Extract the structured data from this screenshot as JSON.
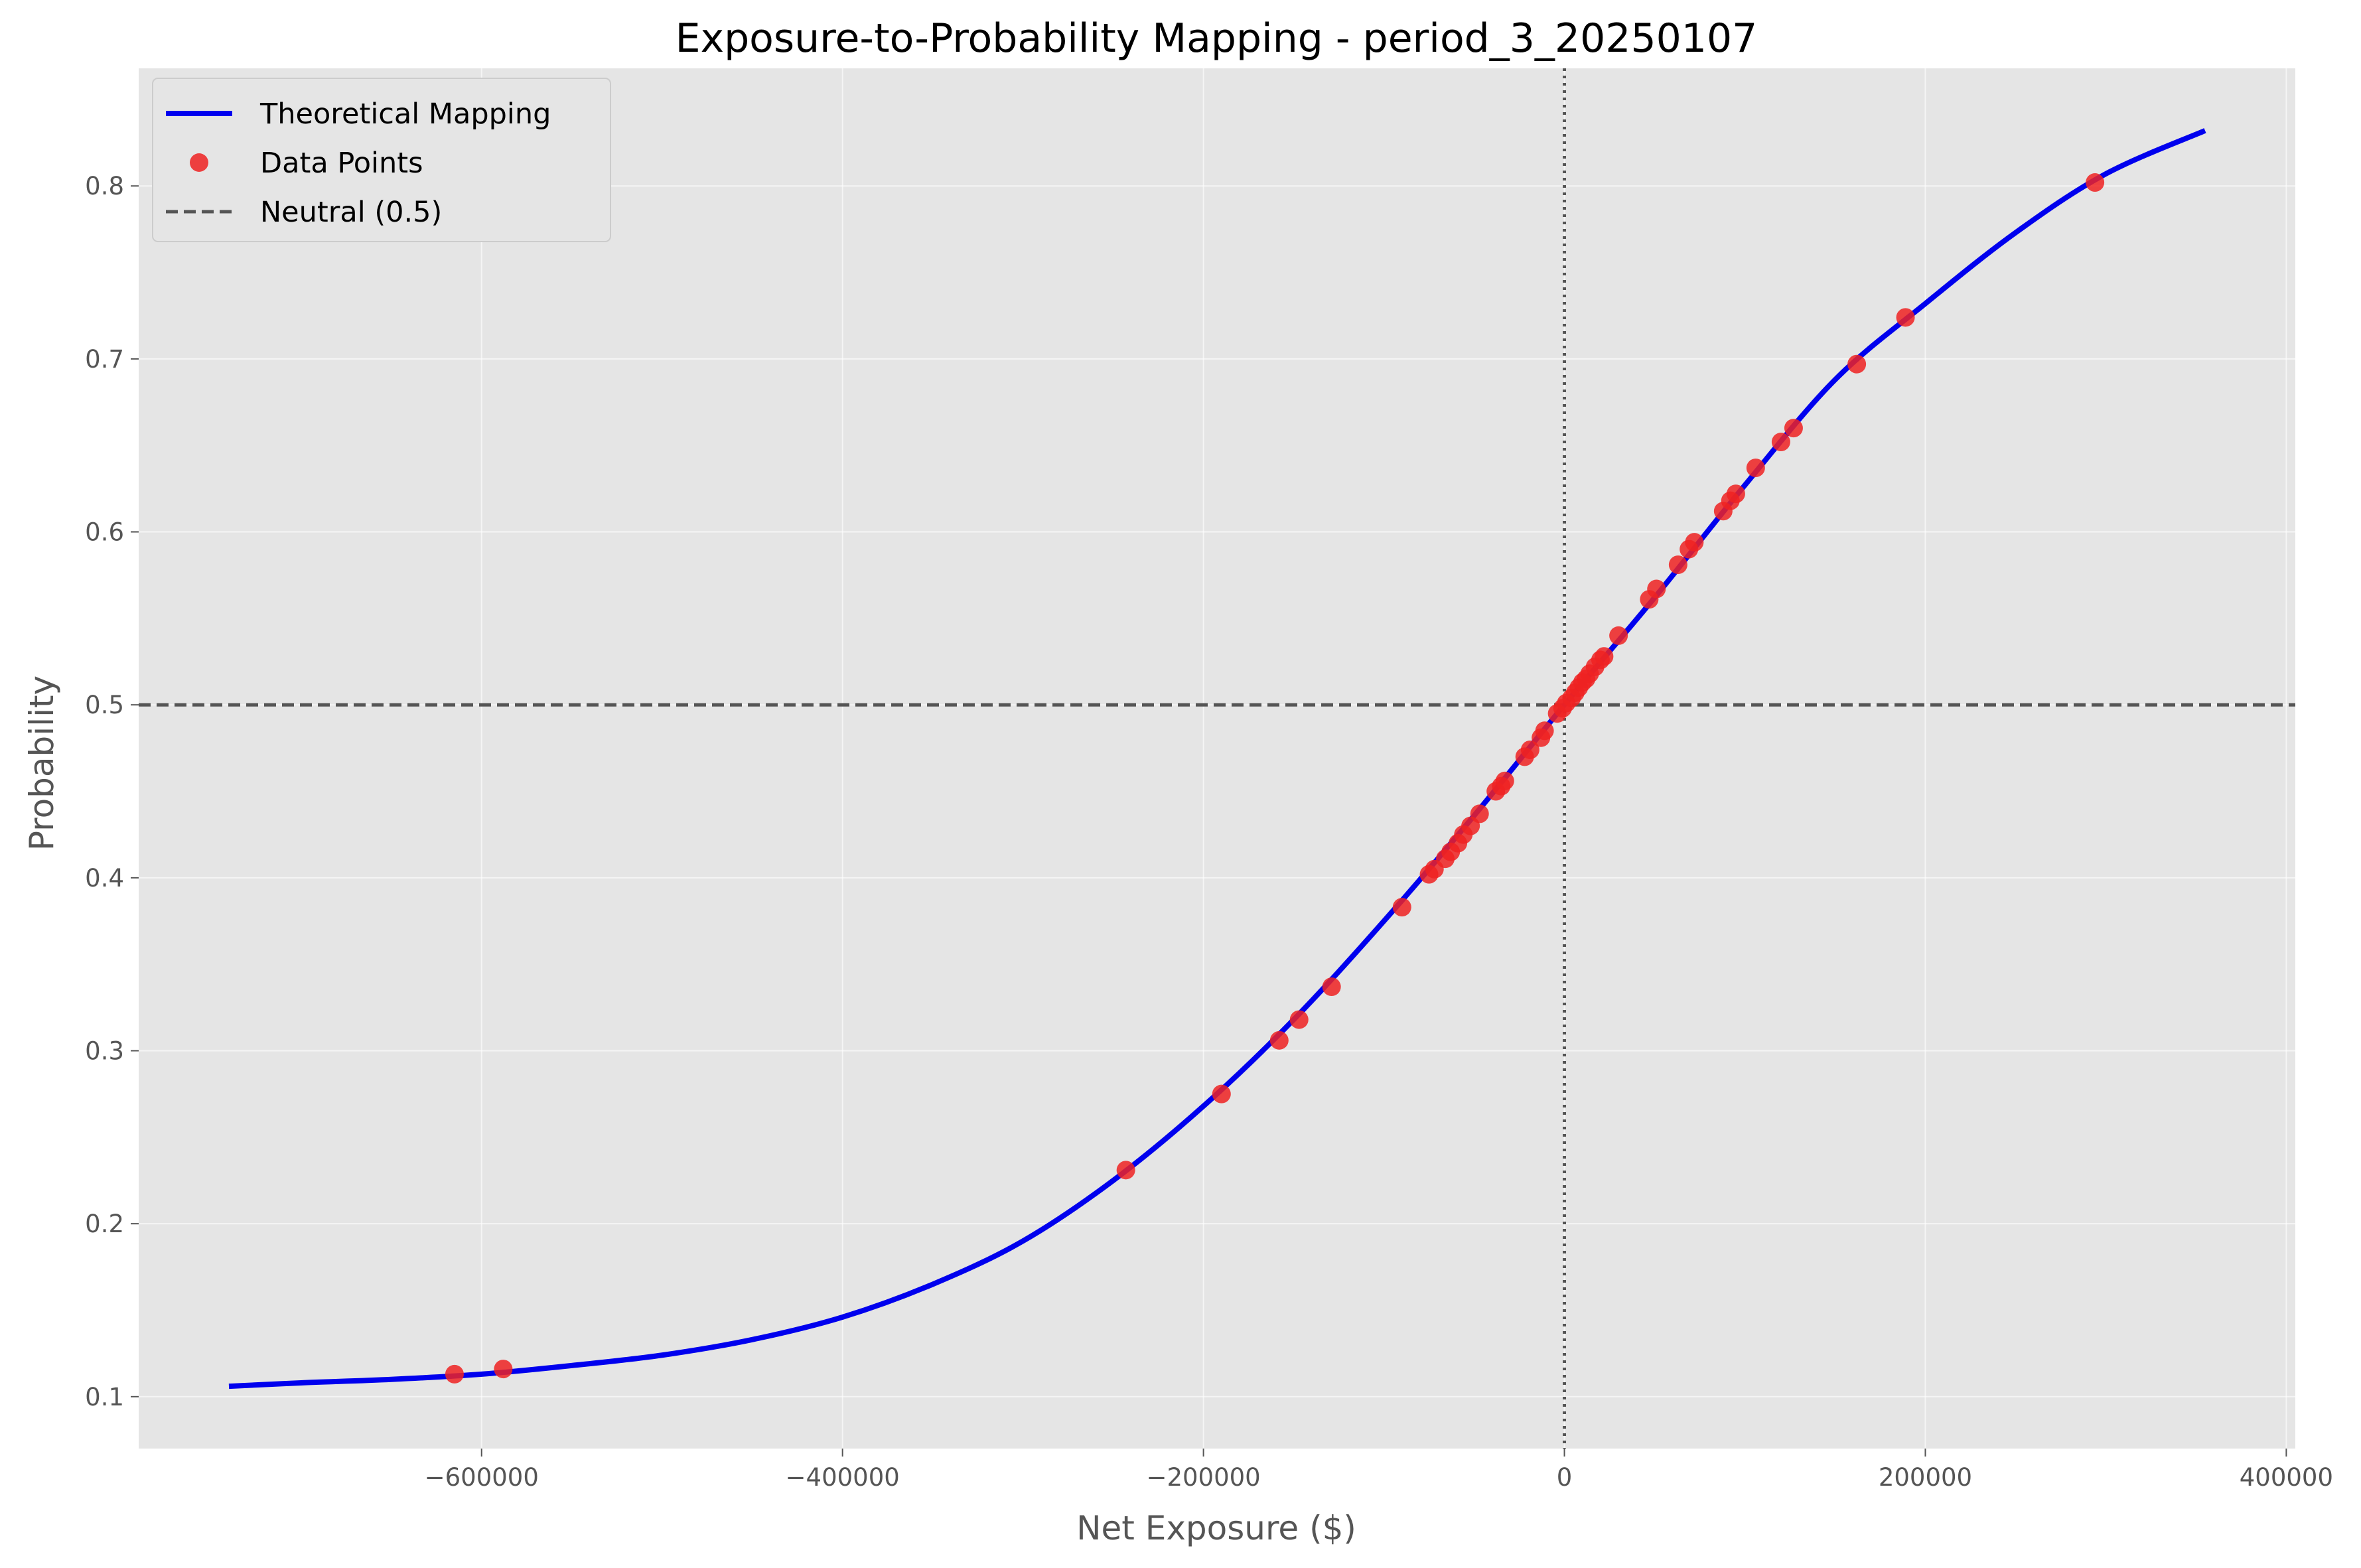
{
  "chart_data": {
    "type": "line",
    "title": "Exposure-to-Probability Mapping - period_3_20250107",
    "xlabel": "Net Exposure ($)",
    "ylabel": "Probability",
    "xlim": [
      -790000,
      405000
    ],
    "ylim": [
      0.07,
      0.868
    ],
    "x_ticks": [
      -600000,
      -400000,
      -200000,
      0,
      200000,
      400000
    ],
    "x_tick_labels": [
      "−600000",
      "−400000",
      "−200000",
      "0",
      "200000",
      "400000"
    ],
    "y_ticks": [
      0.1,
      0.2,
      0.3,
      0.4,
      0.5,
      0.6,
      0.7,
      0.8
    ],
    "y_tick_labels": [
      "0.1",
      "0.2",
      "0.3",
      "0.4",
      "0.5",
      "0.6",
      "0.7",
      "0.8"
    ],
    "grid": true,
    "legend_position": "top-left",
    "series": [
      {
        "name": "Theoretical Mapping",
        "kind": "line",
        "color": "#0000ee",
        "x": [
          -740000,
          -700000,
          -650000,
          -600000,
          -550000,
          -500000,
          -450000,
          -400000,
          -350000,
          -300000,
          -250000,
          -200000,
          -150000,
          -100000,
          -50000,
          0,
          50000,
          100000,
          150000,
          200000,
          250000,
          300000,
          355000
        ],
        "y": [
          0.106,
          0.108,
          0.11,
          0.113,
          0.118,
          0.124,
          0.133,
          0.146,
          0.165,
          0.19,
          0.225,
          0.268,
          0.318,
          0.375,
          0.436,
          0.5,
          0.562,
          0.627,
          0.688,
          0.732,
          0.773,
          0.807,
          0.832
        ]
      },
      {
        "name": "Data Points",
        "kind": "scatter",
        "color": "#ee2222",
        "x": [
          -615000,
          -588000,
          -243000,
          -190000,
          -158000,
          -147000,
          -129000,
          -90000,
          -75000,
          -72000,
          -66000,
          -63000,
          -59000,
          -56000,
          -52000,
          -47000,
          -38000,
          -35000,
          -33000,
          -22000,
          -19000,
          -13000,
          -11000,
          -4000,
          -1000,
          1000,
          4000,
          6000,
          8000,
          10000,
          12000,
          14000,
          17000,
          20000,
          22000,
          30000,
          47000,
          51000,
          63000,
          69000,
          72000,
          88000,
          92000,
          95000,
          106000,
          120000,
          127000,
          162000,
          189000,
          294000
        ],
        "y": [
          0.113,
          0.116,
          0.231,
          0.275,
          0.306,
          0.318,
          0.337,
          0.383,
          0.402,
          0.405,
          0.411,
          0.415,
          0.42,
          0.425,
          0.43,
          0.437,
          0.45,
          0.453,
          0.456,
          0.47,
          0.474,
          0.481,
          0.485,
          0.495,
          0.498,
          0.501,
          0.504,
          0.507,
          0.51,
          0.513,
          0.515,
          0.518,
          0.522,
          0.526,
          0.528,
          0.54,
          0.561,
          0.567,
          0.581,
          0.59,
          0.594,
          0.612,
          0.618,
          0.622,
          0.637,
          0.652,
          0.66,
          0.697,
          0.724,
          0.802
        ]
      },
      {
        "name": "Neutral (0.5)",
        "kind": "hline",
        "color": "#555555",
        "y": 0.5
      }
    ],
    "vline_x": 0
  }
}
